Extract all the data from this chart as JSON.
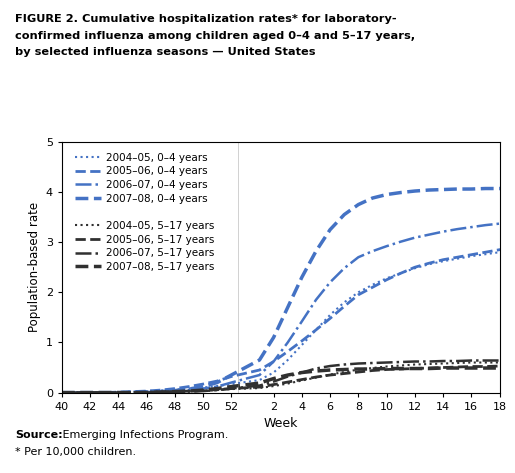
{
  "title_line1": "FIGURE 2. Cumulative hospitalization rates* for laboratory-",
  "title_line2": "confirmed influenza among children aged 0–4 and 5–17 years,",
  "title_line3": "by selected influenza seasons — United States",
  "xlabel": "Week",
  "ylabel": "Population-based rate",
  "source_text": "Source: Emerging Infections Program.",
  "footnote_text": "* Per 10,000 children.",
  "ylim": [
    0,
    5
  ],
  "yticks": [
    0,
    1,
    2,
    3,
    4,
    5
  ],
  "x_ticks_labels": [
    "40",
    "42",
    "44",
    "46",
    "48",
    "50",
    "52",
    "2",
    "4",
    "6",
    "8",
    "10",
    "12",
    "14",
    "16",
    "18",
    ""
  ],
  "blue_color": "#4472C4",
  "black_color": "#000000",
  "dark_gray": "#404040",
  "background": "#ffffff",
  "series": {
    "blue_0_4_2004_05": {
      "label": "2004–05, 0–4 years",
      "color": "#4472C4",
      "linestyle": "dotted",
      "linewidth": 1.5,
      "x": [
        40,
        41,
        42,
        43,
        44,
        45,
        46,
        47,
        48,
        49,
        50,
        51,
        52,
        1,
        2,
        3,
        4,
        5,
        6,
        7,
        8,
        9,
        10,
        11,
        12,
        13,
        14,
        15,
        16,
        17,
        18,
        19
      ],
      "y": [
        0.0,
        0.0,
        0.0,
        0.01,
        0.01,
        0.02,
        0.03,
        0.04,
        0.06,
        0.08,
        0.1,
        0.13,
        0.17,
        0.25,
        0.4,
        0.65,
        0.95,
        1.25,
        1.55,
        1.8,
        2.0,
        2.15,
        2.28,
        2.38,
        2.48,
        2.56,
        2.62,
        2.67,
        2.72,
        2.76,
        2.8,
        2.82
      ]
    },
    "blue_0_4_2005_06": {
      "label": "2005–06, 0–4 years",
      "color": "#4472C4",
      "linestyle": "dashed",
      "linewidth": 2.0,
      "x": [
        40,
        41,
        42,
        43,
        44,
        45,
        46,
        47,
        48,
        49,
        50,
        51,
        52,
        1,
        2,
        3,
        4,
        5,
        6,
        7,
        8,
        9,
        10,
        11,
        12,
        13,
        14,
        15,
        16,
        17,
        18,
        19
      ],
      "y": [
        0.0,
        0.0,
        0.0,
        0.0,
        0.01,
        0.02,
        0.03,
        0.05,
        0.08,
        0.12,
        0.17,
        0.23,
        0.32,
        0.45,
        0.62,
        0.82,
        1.03,
        1.25,
        1.48,
        1.72,
        1.95,
        2.1,
        2.25,
        2.38,
        2.5,
        2.58,
        2.65,
        2.7,
        2.75,
        2.8,
        2.85,
        2.88
      ]
    },
    "blue_0_4_2006_07": {
      "label": "2006–07, 0–4 years",
      "color": "#4472C4",
      "linestyle": "dashdot",
      "linewidth": 1.8,
      "x": [
        40,
        41,
        42,
        43,
        44,
        45,
        46,
        47,
        48,
        49,
        50,
        51,
        52,
        1,
        2,
        3,
        4,
        5,
        6,
        7,
        8,
        9,
        10,
        11,
        12,
        13,
        14,
        15,
        16,
        17,
        18,
        19
      ],
      "y": [
        0.0,
        0.0,
        0.0,
        0.0,
        0.0,
        0.01,
        0.01,
        0.02,
        0.03,
        0.05,
        0.08,
        0.12,
        0.2,
        0.35,
        0.62,
        1.0,
        1.42,
        1.85,
        2.2,
        2.48,
        2.7,
        2.82,
        2.92,
        3.01,
        3.09,
        3.15,
        3.21,
        3.26,
        3.3,
        3.34,
        3.37,
        3.4
      ]
    },
    "blue_0_4_2007_08": {
      "label": "2007–08, 0–4 years",
      "color": "#4472C4",
      "linestyle": "dashed",
      "linewidth": 2.5,
      "x": [
        40,
        41,
        42,
        43,
        44,
        45,
        46,
        47,
        48,
        49,
        50,
        51,
        52,
        1,
        2,
        3,
        4,
        5,
        6,
        7,
        8,
        9,
        10,
        11,
        12,
        13,
        14,
        15,
        16,
        17,
        18,
        19
      ],
      "y": [
        0.0,
        0.0,
        0.0,
        0.0,
        0.0,
        0.0,
        0.01,
        0.02,
        0.04,
        0.07,
        0.12,
        0.2,
        0.35,
        0.65,
        1.1,
        1.7,
        2.3,
        2.82,
        3.25,
        3.55,
        3.75,
        3.88,
        3.95,
        3.99,
        4.02,
        4.04,
        4.05,
        4.06,
        4.06,
        4.07,
        4.07,
        4.07
      ]
    },
    "black_5_17_2004_05": {
      "label": "2004–05, 5–17 years",
      "color": "#303030",
      "linestyle": "dotted",
      "linewidth": 1.5,
      "x": [
        40,
        41,
        42,
        43,
        44,
        45,
        46,
        47,
        48,
        49,
        50,
        51,
        52,
        1,
        2,
        3,
        4,
        5,
        6,
        7,
        8,
        9,
        10,
        11,
        12,
        13,
        14,
        15,
        16,
        17,
        18,
        19
      ],
      "y": [
        0.0,
        0.0,
        0.0,
        0.0,
        0.0,
        0.01,
        0.01,
        0.02,
        0.02,
        0.03,
        0.04,
        0.05,
        0.07,
        0.09,
        0.13,
        0.18,
        0.24,
        0.3,
        0.36,
        0.41,
        0.46,
        0.49,
        0.52,
        0.54,
        0.56,
        0.57,
        0.58,
        0.59,
        0.6,
        0.6,
        0.6,
        0.61
      ]
    },
    "black_5_17_2005_06": {
      "label": "2005–06, 5–17 years",
      "color": "#303030",
      "linestyle": "dashed",
      "linewidth": 2.0,
      "x": [
        40,
        41,
        42,
        43,
        44,
        45,
        46,
        47,
        48,
        49,
        50,
        51,
        52,
        1,
        2,
        3,
        4,
        5,
        6,
        7,
        8,
        9,
        10,
        11,
        12,
        13,
        14,
        15,
        16,
        17,
        18,
        19
      ],
      "y": [
        0.0,
        0.0,
        0.0,
        0.0,
        0.0,
        0.0,
        0.01,
        0.01,
        0.02,
        0.03,
        0.04,
        0.06,
        0.08,
        0.11,
        0.16,
        0.21,
        0.26,
        0.31,
        0.35,
        0.38,
        0.41,
        0.44,
        0.46,
        0.47,
        0.48,
        0.49,
        0.5,
        0.51,
        0.52,
        0.52,
        0.53,
        0.53
      ]
    },
    "black_5_17_2006_07": {
      "label": "2006–07, 5–17 years",
      "color": "#303030",
      "linestyle": "dashdot",
      "linewidth": 1.8,
      "x": [
        40,
        41,
        42,
        43,
        44,
        45,
        46,
        47,
        48,
        49,
        50,
        51,
        52,
        1,
        2,
        3,
        4,
        5,
        6,
        7,
        8,
        9,
        10,
        11,
        12,
        13,
        14,
        15,
        16,
        17,
        18,
        19
      ],
      "y": [
        0.0,
        0.0,
        0.0,
        0.0,
        0.0,
        0.0,
        0.0,
        0.01,
        0.01,
        0.02,
        0.03,
        0.05,
        0.08,
        0.14,
        0.22,
        0.32,
        0.4,
        0.48,
        0.53,
        0.56,
        0.58,
        0.59,
        0.6,
        0.61,
        0.62,
        0.62,
        0.63,
        0.63,
        0.64,
        0.64,
        0.64,
        0.64
      ]
    },
    "black_5_17_2007_08": {
      "label": "2007–08, 5–17 years",
      "color": "#303030",
      "linestyle": "dashed",
      "linewidth": 2.5,
      "x": [
        40,
        41,
        42,
        43,
        44,
        45,
        46,
        47,
        48,
        49,
        50,
        51,
        52,
        1,
        2,
        3,
        4,
        5,
        6,
        7,
        8,
        9,
        10,
        11,
        12,
        13,
        14,
        15,
        16,
        17,
        18,
        19
      ],
      "y": [
        0.0,
        0.0,
        0.0,
        0.0,
        0.0,
        0.0,
        0.0,
        0.01,
        0.02,
        0.03,
        0.05,
        0.08,
        0.12,
        0.19,
        0.28,
        0.35,
        0.4,
        0.43,
        0.45,
        0.46,
        0.47,
        0.47,
        0.48,
        0.48,
        0.48,
        0.48,
        0.49,
        0.49,
        0.49,
        0.49,
        0.49,
        0.49
      ]
    }
  }
}
